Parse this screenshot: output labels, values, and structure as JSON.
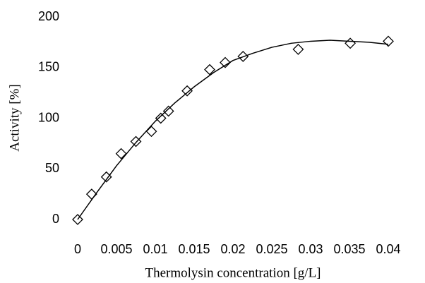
{
  "chart_data": {
    "type": "scatter",
    "xlabel": "Thermolysin concentration [g/L]",
    "ylabel": "Activity [%]",
    "xlim": [
      0,
      0.04
    ],
    "xticks": [
      0,
      0.005,
      0.01,
      0.015,
      0.02,
      0.025,
      0.03,
      0.035,
      0.04
    ],
    "ylim": [
      0,
      200
    ],
    "yticks": [
      0,
      50,
      100,
      150,
      200
    ],
    "grid": false,
    "series": [
      {
        "style": "markers",
        "marker": "diamond",
        "color": "#000000",
        "x": [
          0,
          0.0018,
          0.0037,
          0.0056,
          0.0075,
          0.0095,
          0.0107,
          0.0117,
          0.0141,
          0.017,
          0.019,
          0.0213,
          0.0284,
          0.0351,
          0.04
        ],
        "values": [
          0,
          25,
          42,
          65,
          77,
          87,
          100,
          107,
          127,
          148,
          155,
          161,
          168,
          174,
          176
        ]
      },
      {
        "style": "line",
        "color": "#000000",
        "x": [
          0,
          0.0025,
          0.005,
          0.0075,
          0.01,
          0.0125,
          0.015,
          0.0175,
          0.02,
          0.0225,
          0.025,
          0.0275,
          0.03,
          0.0325,
          0.035,
          0.0375,
          0.04
        ],
        "values": [
          0,
          27,
          53,
          76,
          97,
          115,
          131,
          145,
          157,
          164,
          170,
          174,
          176,
          177,
          176,
          175,
          173
        ]
      }
    ]
  }
}
